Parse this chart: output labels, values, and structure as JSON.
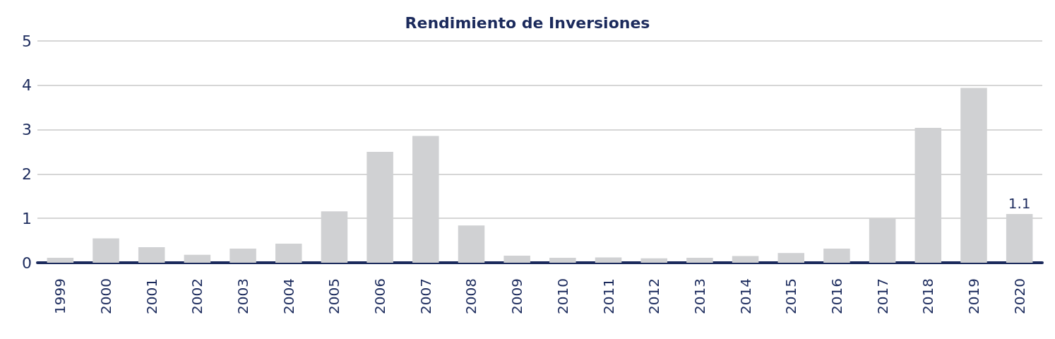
{
  "chart_data": {
    "type": "bar",
    "title": "Rendimiento de Inversiones",
    "categories": [
      "1999",
      "2000",
      "2001",
      "2002",
      "2003",
      "2004",
      "2005",
      "2006",
      "2007",
      "2008",
      "2009",
      "2010",
      "2011",
      "2012",
      "2013",
      "2014",
      "2015",
      "2016",
      "2017",
      "2018",
      "2019",
      "2020"
    ],
    "values": [
      0.11,
      0.55,
      0.35,
      0.18,
      0.32,
      0.43,
      1.16,
      2.5,
      2.86,
      0.84,
      0.16,
      0.11,
      0.12,
      0.1,
      0.11,
      0.15,
      0.22,
      0.32,
      1.0,
      3.04,
      3.94,
      1.1
    ],
    "value_labels": [
      null,
      null,
      null,
      null,
      null,
      null,
      null,
      null,
      null,
      null,
      null,
      null,
      null,
      null,
      null,
      null,
      null,
      null,
      null,
      null,
      null,
      "1.1"
    ],
    "color": "#d0d1d3",
    "ylim": [
      0,
      5
    ],
    "yticks": [
      0,
      1,
      2,
      3,
      4,
      5
    ],
    "grid": "y"
  }
}
